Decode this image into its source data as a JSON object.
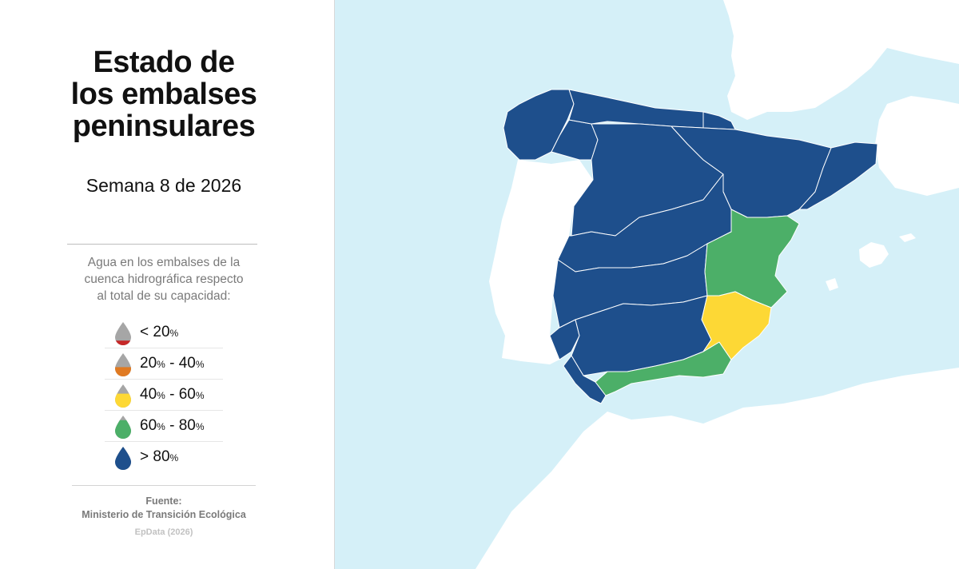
{
  "header": {
    "title_lines": [
      "Estado de",
      "los embalses",
      "peninsulares"
    ],
    "subtitle": "Semana 8 de 2026"
  },
  "legend": {
    "description_lines": [
      "Agua en los embalses de la",
      "cuenca hidrográfica respecto",
      "al total de su capacidad:"
    ],
    "items": [
      {
        "parts": [
          "< 20",
          "%",
          "",
          ""
        ],
        "color": "#c62828",
        "fill_level": 0.2
      },
      {
        "parts": [
          "20",
          "%",
          " - 40",
          "%"
        ],
        "color": "#e07a22",
        "fill_level": 0.4
      },
      {
        "parts": [
          "40",
          "%",
          " - 60",
          "%"
        ],
        "color": "#fdd835",
        "fill_level": 0.6
      },
      {
        "parts": [
          "60",
          "%",
          " - 80",
          "%"
        ],
        "color": "#4caf68",
        "fill_level": 0.8
      },
      {
        "parts": [
          "> 80",
          "%",
          "",
          ""
        ],
        "color": "#1e4f8c",
        "fill_level": 1.0
      }
    ]
  },
  "source": {
    "label": "Fuente:",
    "name": "Ministerio de Transición Ecológica",
    "credit": "EpData (2026)"
  },
  "map": {
    "colors": {
      "sea": "#d5f0f8",
      "land": "#ffffff",
      "high": "#1e4f8c",
      "mid_high": "#4caf68",
      "mid": "#fdd835",
      "border": "#ffffff"
    },
    "basin_categories": {
      "miño_sil": "> 80%",
      "cantabrico": "> 80%",
      "galicia_costa": "> 80%",
      "pais_vasco": "> 80%",
      "duero": "> 80%",
      "ebro": "> 80%",
      "cataluna": "> 80%",
      "tajo": "> 80%",
      "guadiana": "> 80%",
      "guadalquivir": "> 80%",
      "tinto_odiel_piedras": "> 80%",
      "guadalete_barbate": "> 80%",
      "jucar": "60% - 80%",
      "mediterranea_andaluza": "60% - 80%",
      "segura": "40% - 60%"
    }
  }
}
